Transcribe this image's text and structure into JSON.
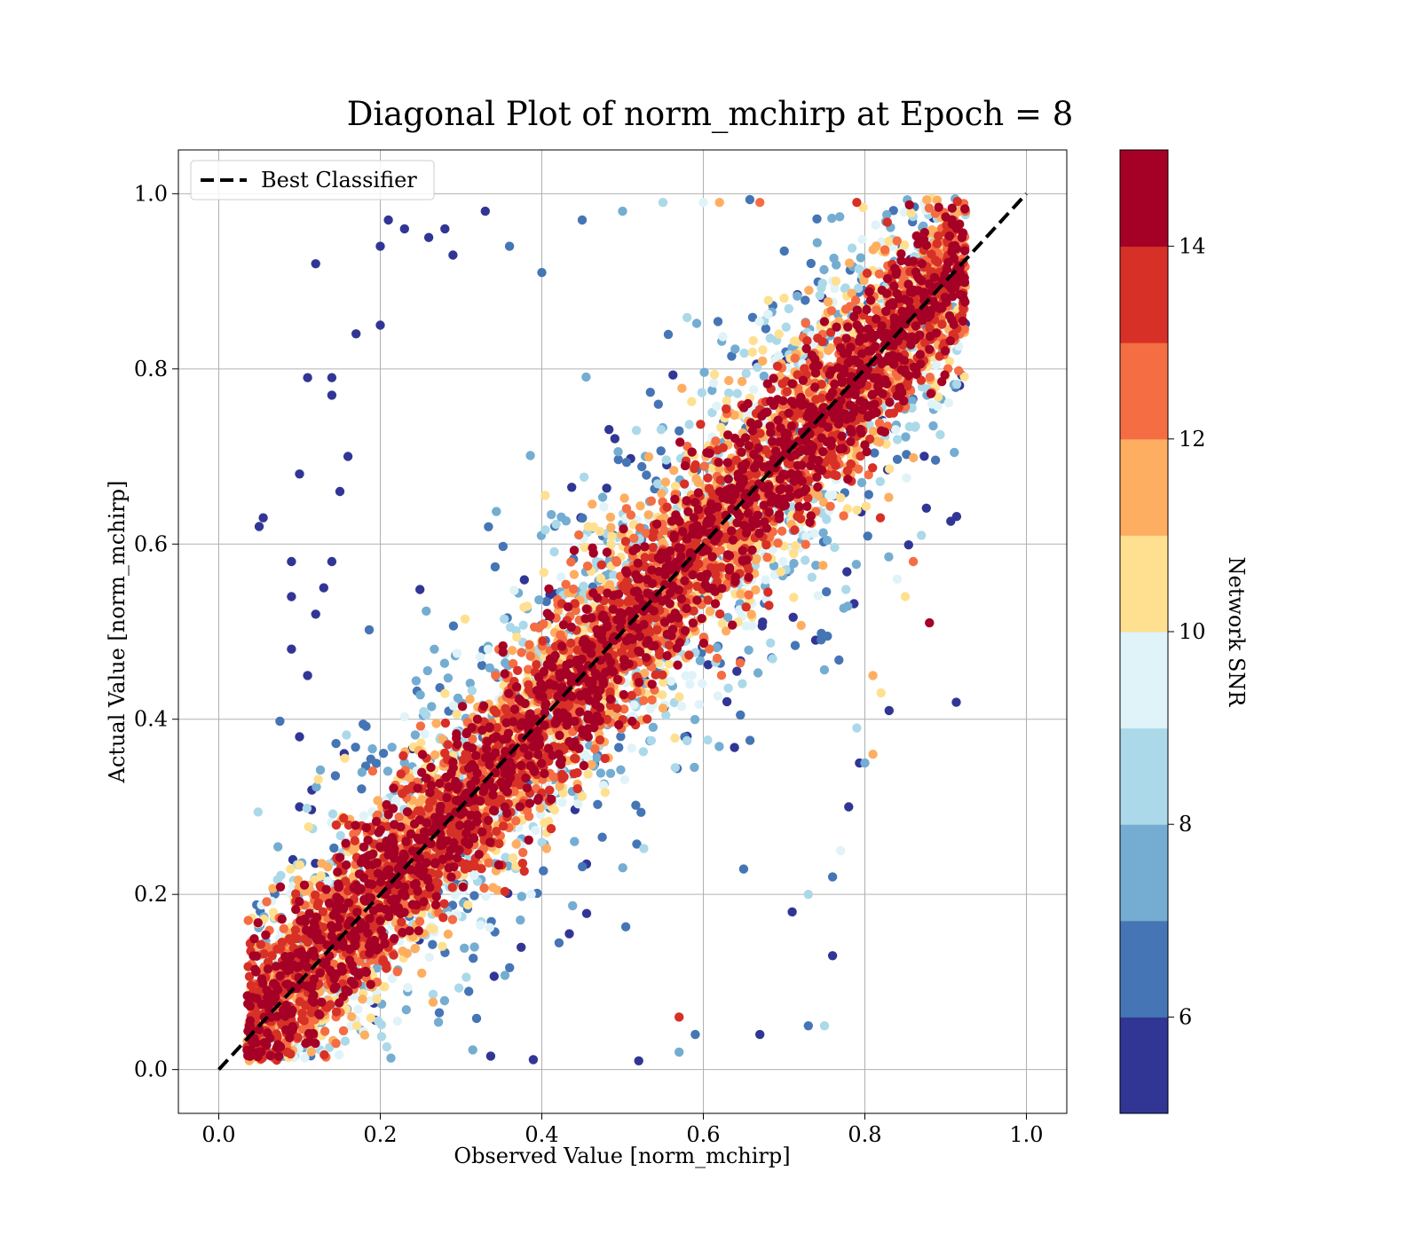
{
  "chart_data": {
    "type": "scatter",
    "title": "Diagonal Plot of norm_mchirp at Epoch = 8",
    "xlabel": "Observed Value [norm_mchirp]",
    "ylabel": "Actual Value [norm_mchirp]",
    "xlim": [
      -0.05,
      1.05
    ],
    "ylim": [
      -0.05,
      1.05
    ],
    "x_ticks": [
      "0.0",
      "0.2",
      "0.4",
      "0.6",
      "0.8",
      "1.0"
    ],
    "y_ticks": [
      "0.0",
      "0.2",
      "0.4",
      "0.6",
      "0.8",
      "1.0"
    ],
    "grid": true,
    "legend": {
      "placement": "upper-left",
      "entries": [
        "Best Classifier"
      ]
    },
    "reference_line": {
      "name": "Best Classifier",
      "x": [
        0.0,
        1.0
      ],
      "y": [
        0.0,
        1.0
      ],
      "style": "dashed",
      "color": "#000000"
    },
    "colorbar": {
      "label": "Network SNR",
      "min": 5,
      "max": 15,
      "ticks": [
        "6",
        "8",
        "10",
        "12",
        "14"
      ],
      "tick_values": [
        6,
        8,
        10,
        12,
        14
      ],
      "colors": [
        "#313695",
        "#4575b4",
        "#74add1",
        "#abd9e9",
        "#e0f3f8",
        "#fee090",
        "#fdae61",
        "#f46d43",
        "#d73027",
        "#a50026"
      ]
    },
    "points": [
      [
        0.05,
        0.62,
        5.5
      ],
      [
        0.055,
        0.63,
        5.5
      ],
      [
        0.1,
        0.68,
        5.5
      ],
      [
        0.12,
        0.92,
        5.5
      ],
      [
        0.11,
        0.79,
        5.5
      ],
      [
        0.09,
        0.58,
        5.5
      ],
      [
        0.09,
        0.54,
        5.5
      ],
      [
        0.09,
        0.48,
        5.5
      ],
      [
        0.21,
        0.97,
        5.5
      ],
      [
        0.23,
        0.96,
        5.5
      ],
      [
        0.2,
        0.94,
        5.5
      ],
      [
        0.2,
        0.85,
        5.5
      ],
      [
        0.17,
        0.84,
        5.5
      ],
      [
        0.14,
        0.79,
        5.5
      ],
      [
        0.14,
        0.77,
        5.5
      ],
      [
        0.16,
        0.7,
        5.5
      ],
      [
        0.26,
        0.95,
        5.5
      ],
      [
        0.28,
        0.96,
        5.5
      ],
      [
        0.29,
        0.93,
        5.5
      ],
      [
        0.33,
        0.98,
        5.5
      ],
      [
        0.13,
        0.55,
        5.5
      ],
      [
        0.14,
        0.58,
        5.5
      ],
      [
        0.12,
        0.52,
        5.5
      ],
      [
        0.15,
        0.66,
        5.5
      ],
      [
        0.1,
        0.3,
        5.5
      ],
      [
        0.1,
        0.38,
        5.5
      ],
      [
        0.11,
        0.45,
        5.5
      ],
      [
        0.45,
        0.97,
        6.5
      ],
      [
        0.5,
        0.98,
        7.5
      ],
      [
        0.55,
        0.99,
        8.5
      ],
      [
        0.6,
        0.99,
        9.5
      ],
      [
        0.62,
        0.99,
        11.5
      ],
      [
        0.67,
        0.99,
        12.5
      ],
      [
        0.79,
        0.99,
        13.5
      ],
      [
        0.36,
        0.94,
        6.5
      ],
      [
        0.4,
        0.91,
        6.5
      ],
      [
        0.88,
        0.51,
        14.5
      ],
      [
        0.83,
        0.41,
        5.5
      ],
      [
        0.81,
        0.36,
        11.5
      ],
      [
        0.78,
        0.3,
        5.5
      ],
      [
        0.76,
        0.13,
        5.5
      ],
      [
        0.75,
        0.05,
        8.5
      ],
      [
        0.73,
        0.05,
        6.5
      ],
      [
        0.67,
        0.04,
        5.5
      ],
      [
        0.59,
        0.04,
        6.5
      ],
      [
        0.57,
        0.06,
        13.5
      ],
      [
        0.57,
        0.02,
        7.5
      ],
      [
        0.52,
        0.01,
        5.5
      ],
      [
        0.71,
        0.18,
        5.5
      ],
      [
        0.73,
        0.2,
        8.5
      ],
      [
        0.76,
        0.22,
        6.5
      ],
      [
        0.77,
        0.25,
        9.5
      ],
      [
        0.8,
        0.35,
        7.5
      ],
      [
        0.79,
        0.39,
        8.5
      ],
      [
        0.82,
        0.43,
        10.5
      ],
      [
        0.81,
        0.45,
        11.5
      ],
      [
        0.85,
        0.54,
        10.5
      ],
      [
        0.84,
        0.56,
        9.5
      ],
      [
        0.86,
        0.58,
        12.5
      ],
      [
        0.87,
        0.61,
        8.5
      ]
    ]
  }
}
